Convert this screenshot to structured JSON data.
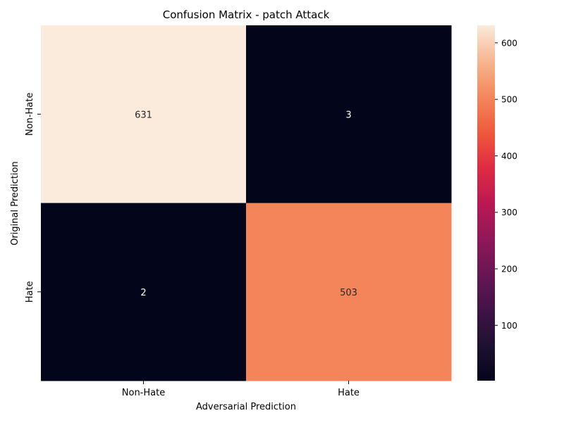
{
  "chart_data": {
    "type": "heatmap",
    "title": "Confusion Matrix - patch Attack",
    "xlabel": "Adversarial Prediction",
    "ylabel": "Original Prediction",
    "x_categories": [
      "Non-Hate",
      "Hate"
    ],
    "y_categories": [
      "Non-Hate",
      "Hate"
    ],
    "values": [
      [
        631,
        3
      ],
      [
        2,
        503
      ]
    ],
    "colorbar": {
      "range": [
        2,
        631
      ],
      "ticks": [
        100,
        200,
        300,
        400,
        500,
        600
      ],
      "colormap": "rocket"
    },
    "cell_text_color_dark_bg": "#ffffff",
    "cell_text_color_light_bg": "#262626"
  }
}
